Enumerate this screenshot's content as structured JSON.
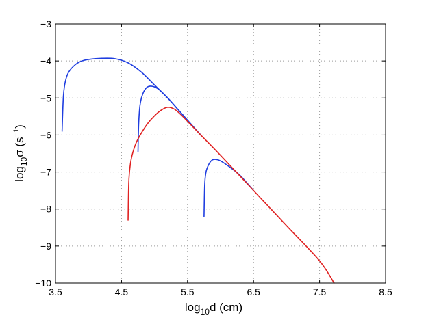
{
  "chart_data": {
    "type": "line",
    "xlim": [
      3.5,
      8.5
    ],
    "ylim": [
      -10,
      -3
    ],
    "x_ticks": [
      3.5,
      4.5,
      5.5,
      6.5,
      7.5,
      8.5
    ],
    "y_ticks": [
      -3,
      -4,
      -5,
      -6,
      -7,
      -8,
      -9,
      -10
    ],
    "x_tick_labels": [
      "3.5",
      "4.5",
      "5.5",
      "6.5",
      "7.5",
      "8.5"
    ],
    "y_tick_labels": [
      "−3",
      "−4",
      "−5",
      "−6",
      "−7",
      "−8",
      "−9",
      "−10"
    ],
    "xlabel": {
      "base": "log",
      "sub": "10",
      "rest": "d (cm)"
    },
    "ylabel": {
      "base": "log",
      "sub": "10",
      "mid": "σ (s",
      "sup": "−1",
      "end": ")"
    },
    "grid": true,
    "series": [
      {
        "color": "#1f3ee0",
        "x": [
          3.6,
          3.62,
          3.65,
          3.7,
          3.8,
          3.9,
          4.0,
          4.2,
          4.4,
          4.6,
          4.8,
          5.0,
          5.2,
          5.4,
          5.6,
          5.7
        ],
        "y": [
          -5.9,
          -4.95,
          -4.55,
          -4.3,
          -4.1,
          -4.0,
          -3.96,
          -3.93,
          -3.94,
          -4.05,
          -4.3,
          -4.65,
          -5.0,
          -5.4,
          -5.8,
          -6.0
        ]
      },
      {
        "color": "#1f3ee0",
        "x": [
          4.75,
          4.76,
          4.78,
          4.82,
          4.88,
          4.95,
          5.05,
          5.2,
          5.35,
          5.5,
          5.6,
          5.7
        ],
        "y": [
          -6.45,
          -5.7,
          -5.2,
          -4.9,
          -4.72,
          -4.68,
          -4.75,
          -5.0,
          -5.3,
          -5.6,
          -5.8,
          -6.0
        ]
      },
      {
        "color": "#1f3ee0",
        "x": [
          5.75,
          5.76,
          5.78,
          5.82,
          5.87,
          5.93,
          6.0,
          6.15,
          6.3,
          6.5
        ],
        "y": [
          -8.2,
          -7.35,
          -7.0,
          -6.8,
          -6.68,
          -6.66,
          -6.7,
          -6.88,
          -7.1,
          -7.5
        ]
      },
      {
        "color": "#e02222",
        "x": [
          4.6,
          4.61,
          4.63,
          4.66,
          4.72,
          4.8,
          4.9,
          5.0,
          5.1,
          5.2,
          5.3,
          5.4,
          5.5,
          5.7,
          6.0,
          6.5,
          7.0,
          7.5,
          7.72
        ],
        "y": [
          -8.3,
          -7.3,
          -6.85,
          -6.55,
          -6.22,
          -5.95,
          -5.68,
          -5.48,
          -5.33,
          -5.25,
          -5.3,
          -5.45,
          -5.63,
          -6.0,
          -6.55,
          -7.5,
          -8.45,
          -9.4,
          -10.0
        ]
      }
    ]
  }
}
